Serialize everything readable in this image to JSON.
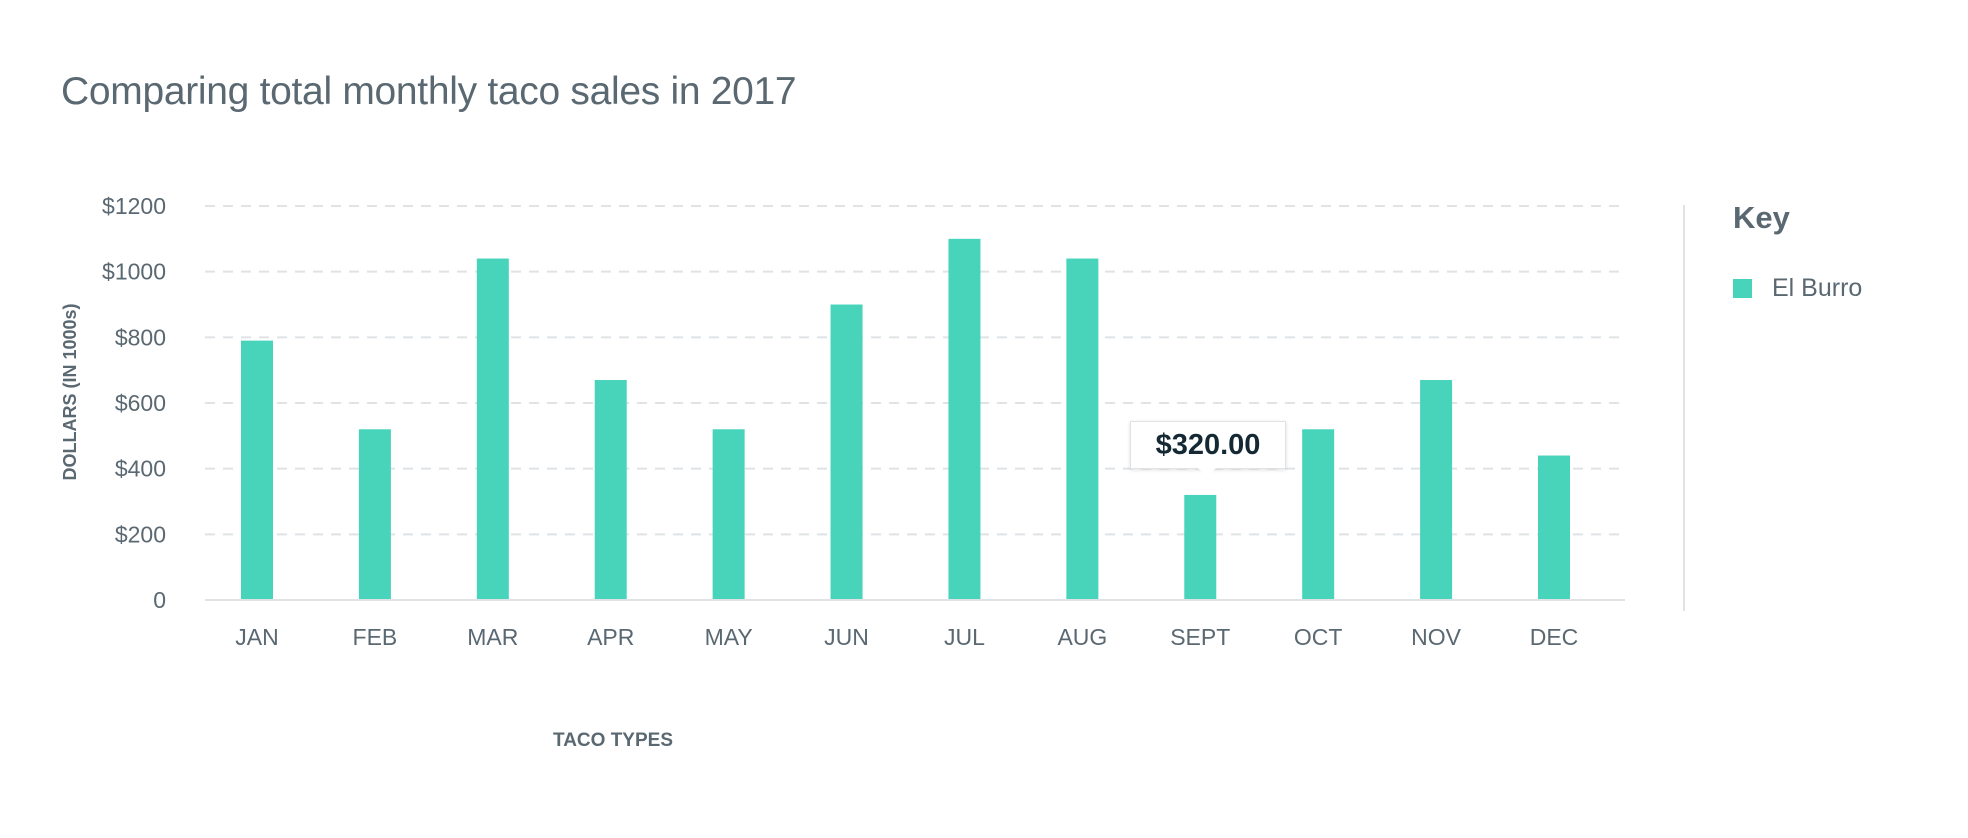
{
  "title": "Comparing total monthly taco sales in 2017",
  "legend": {
    "title": "Key",
    "items": [
      {
        "label": "El Burro",
        "color": "#48d4bb"
      }
    ]
  },
  "tooltip": {
    "value": "$320.00",
    "category": "SEPT"
  },
  "chart_data": {
    "type": "bar",
    "title": "Comparing total monthly taco sales in 2017",
    "xlabel": "TACO TYPES",
    "ylabel": "DOLLARS (IN 1000s)",
    "ylim": [
      0,
      1200
    ],
    "yticks": [
      {
        "value": 0,
        "label": "0"
      },
      {
        "value": 200,
        "label": "$200"
      },
      {
        "value": 400,
        "label": "$400"
      },
      {
        "value": 600,
        "label": "$600"
      },
      {
        "value": 800,
        "label": "$800"
      },
      {
        "value": 1000,
        "label": "$1000"
      },
      {
        "value": 1200,
        "label": "$1200"
      }
    ],
    "grid": true,
    "legend_position": "right",
    "categories": [
      "JAN",
      "FEB",
      "MAR",
      "APR",
      "MAY",
      "JUN",
      "JUL",
      "AUG",
      "SEPT",
      "OCT",
      "NOV",
      "DEC"
    ],
    "series": [
      {
        "name": "El Burro",
        "color": "#48d4bb",
        "values": [
          790,
          520,
          1040,
          670,
          520,
          900,
          1100,
          1040,
          320,
          520,
          670,
          440
        ]
      }
    ]
  }
}
